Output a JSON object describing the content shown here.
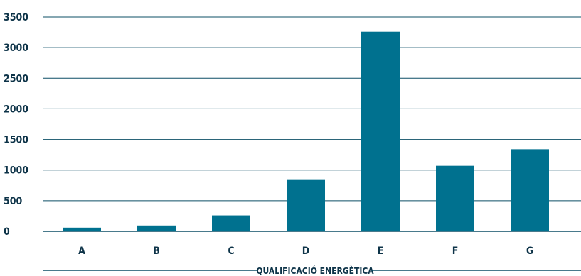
{
  "chart_data": {
    "type": "bar",
    "categories": [
      "A",
      "B",
      "C",
      "D",
      "E",
      "F",
      "G"
    ],
    "values": [
      60,
      95,
      260,
      850,
      3260,
      1070,
      1340
    ],
    "yticks": [
      "0",
      "500",
      "1000",
      "1500",
      "2000",
      "2500",
      "3000",
      "3500"
    ],
    "ylim": [
      0,
      3500
    ],
    "xlabel": "QUALIFICACIÓ ENERGÈTICA",
    "ylabel": "",
    "title": "",
    "grid": true,
    "legend": "none",
    "colors": {
      "bar": "#00718f",
      "grid": "#0d4f66",
      "text": "#0d3348"
    }
  }
}
